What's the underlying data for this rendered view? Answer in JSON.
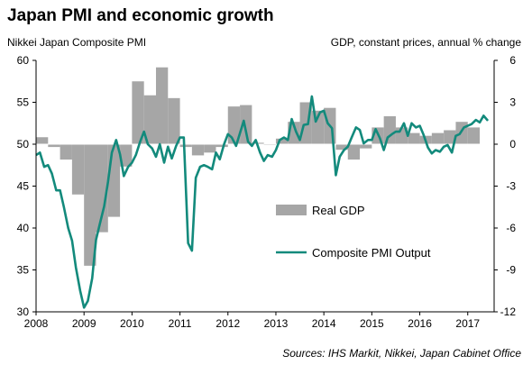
{
  "chart_data": {
    "type": "bar+line",
    "title": "Japan PMI and economic growth",
    "left_axis_label": "Nikkei Japan Composite PMI",
    "right_axis_label": "GDP, constant prices, annual % change",
    "source": "Sources: IHS Markit, Nikkei, Japan Cabinet Office",
    "x_ticks": [
      "2008",
      "2009",
      "2010",
      "2011",
      "2012",
      "2013",
      "2014",
      "2015",
      "2016",
      "2017"
    ],
    "x_range": [
      2008.0,
      2017.55
    ],
    "left_axis": {
      "min": 30,
      "max": 60,
      "ticks": [
        30,
        35,
        40,
        45,
        50,
        55,
        60
      ]
    },
    "right_axis": {
      "min": -12,
      "max": 6,
      "ticks": [
        -12,
        -9,
        -6,
        -3,
        0,
        3,
        6
      ]
    },
    "legend": {
      "position": "center-right",
      "entries": [
        "Real GDP",
        "Composite PMI Output"
      ]
    },
    "colors": {
      "gdp_bar": "#a6a6a6",
      "pmi_line": "#138a7c"
    },
    "series": [
      {
        "name": "Real GDP",
        "axis": "right",
        "type": "bar",
        "quarters": [
          {
            "start": 2008.0,
            "value": 0.5
          },
          {
            "start": 2008.25,
            "value": -0.2
          },
          {
            "start": 2008.5,
            "value": -1.1
          },
          {
            "start": 2008.75,
            "value": -3.6
          },
          {
            "start": 2009.0,
            "value": -8.7
          },
          {
            "start": 2009.25,
            "value": -6.3
          },
          {
            "start": 2009.5,
            "value": -5.2
          },
          {
            "start": 2009.75,
            "value": -1.6
          },
          {
            "start": 2010.0,
            "value": 4.5
          },
          {
            "start": 2010.25,
            "value": 3.5
          },
          {
            "start": 2010.5,
            "value": 5.5
          },
          {
            "start": 2010.75,
            "value": 3.3
          },
          {
            "start": 2011.0,
            "value": -0.2
          },
          {
            "start": 2011.25,
            "value": -0.8
          },
          {
            "start": 2011.5,
            "value": -0.6
          },
          {
            "start": 2011.75,
            "value": -0.2
          },
          {
            "start": 2012.0,
            "value": 2.7
          },
          {
            "start": 2012.25,
            "value": 2.8
          },
          {
            "start": 2012.5,
            "value": 0.1
          },
          {
            "start": 2012.75,
            "value": 0.0
          },
          {
            "start": 2013.0,
            "value": 0.4
          },
          {
            "start": 2013.25,
            "value": 1.6
          },
          {
            "start": 2013.5,
            "value": 3.0
          },
          {
            "start": 2013.75,
            "value": 2.4
          },
          {
            "start": 2014.0,
            "value": 2.6
          },
          {
            "start": 2014.25,
            "value": -0.4
          },
          {
            "start": 2014.5,
            "value": -1.1
          },
          {
            "start": 2014.75,
            "value": -0.3
          },
          {
            "start": 2015.0,
            "value": 1.2
          },
          {
            "start": 2015.25,
            "value": 2.0
          },
          {
            "start": 2015.5,
            "value": 1.2
          },
          {
            "start": 2015.75,
            "value": 0.8
          },
          {
            "start": 2016.0,
            "value": 0.6
          },
          {
            "start": 2016.25,
            "value": 0.8
          },
          {
            "start": 2016.5,
            "value": 1.0
          },
          {
            "start": 2016.75,
            "value": 1.6
          },
          {
            "start": 2017.0,
            "value": 1.2
          }
        ]
      },
      {
        "name": "Composite PMI Output",
        "axis": "left",
        "type": "line",
        "points": [
          [
            2008.0,
            48.7
          ],
          [
            2008.08,
            49.0
          ],
          [
            2008.17,
            47.3
          ],
          [
            2008.25,
            47.5
          ],
          [
            2008.33,
            46.5
          ],
          [
            2008.42,
            44.5
          ],
          [
            2008.5,
            44.5
          ],
          [
            2008.58,
            42.5
          ],
          [
            2008.67,
            40.0
          ],
          [
            2008.75,
            38.5
          ],
          [
            2008.83,
            35.3
          ],
          [
            2008.92,
            32.5
          ],
          [
            2009.0,
            30.5
          ],
          [
            2009.08,
            31.3
          ],
          [
            2009.17,
            34.0
          ],
          [
            2009.25,
            38.6
          ],
          [
            2009.33,
            40.5
          ],
          [
            2009.42,
            42.6
          ],
          [
            2009.5,
            45.5
          ],
          [
            2009.58,
            49.0
          ],
          [
            2009.67,
            50.5
          ],
          [
            2009.75,
            48.8
          ],
          [
            2009.83,
            46.2
          ],
          [
            2009.92,
            47.3
          ],
          [
            2010.0,
            47.8
          ],
          [
            2010.08,
            48.7
          ],
          [
            2010.17,
            50.3
          ],
          [
            2010.25,
            51.5
          ],
          [
            2010.33,
            50.0
          ],
          [
            2010.42,
            49.5
          ],
          [
            2010.5,
            48.5
          ],
          [
            2010.58,
            50.0
          ],
          [
            2010.67,
            47.8
          ],
          [
            2010.75,
            49.7
          ],
          [
            2010.83,
            48.3
          ],
          [
            2010.92,
            49.8
          ],
          [
            2011.0,
            50.8
          ],
          [
            2011.08,
            50.8
          ],
          [
            2011.17,
            38.2
          ],
          [
            2011.25,
            37.3
          ],
          [
            2011.33,
            46.0
          ],
          [
            2011.42,
            47.3
          ],
          [
            2011.5,
            47.5
          ],
          [
            2011.58,
            47.3
          ],
          [
            2011.67,
            47.0
          ],
          [
            2011.75,
            49.0
          ],
          [
            2011.83,
            48.2
          ],
          [
            2011.92,
            50.0
          ],
          [
            2012.0,
            51.2
          ],
          [
            2012.08,
            50.8
          ],
          [
            2012.17,
            49.8
          ],
          [
            2012.25,
            51.3
          ],
          [
            2012.33,
            52.8
          ],
          [
            2012.42,
            50.3
          ],
          [
            2012.5,
            49.8
          ],
          [
            2012.58,
            50.5
          ],
          [
            2012.67,
            49.0
          ],
          [
            2012.75,
            48.0
          ],
          [
            2012.83,
            48.7
          ],
          [
            2012.92,
            48.5
          ],
          [
            2013.0,
            49.3
          ],
          [
            2013.08,
            50.5
          ],
          [
            2013.17,
            50.8
          ],
          [
            2013.25,
            50.5
          ],
          [
            2013.33,
            53.0
          ],
          [
            2013.42,
            51.5
          ],
          [
            2013.5,
            50.5
          ],
          [
            2013.58,
            52.3
          ],
          [
            2013.67,
            52.4
          ],
          [
            2013.75,
            55.7
          ],
          [
            2013.83,
            52.7
          ],
          [
            2013.92,
            53.8
          ],
          [
            2014.0,
            54.0
          ],
          [
            2014.08,
            52.5
          ],
          [
            2014.17,
            51.9
          ],
          [
            2014.25,
            46.3
          ],
          [
            2014.33,
            48.5
          ],
          [
            2014.42,
            49.3
          ],
          [
            2014.5,
            49.7
          ],
          [
            2014.58,
            50.8
          ],
          [
            2014.67,
            52.0
          ],
          [
            2014.75,
            51.7
          ],
          [
            2014.83,
            50.1
          ],
          [
            2014.92,
            50.5
          ],
          [
            2015.0,
            50.5
          ],
          [
            2015.08,
            51.8
          ],
          [
            2015.17,
            50.7
          ],
          [
            2015.25,
            49.3
          ],
          [
            2015.33,
            50.8
          ],
          [
            2015.42,
            51.2
          ],
          [
            2015.5,
            51.5
          ],
          [
            2015.58,
            51.5
          ],
          [
            2015.67,
            52.5
          ],
          [
            2015.75,
            51.0
          ],
          [
            2015.83,
            52.5
          ],
          [
            2015.92,
            52.0
          ],
          [
            2016.0,
            52.2
          ],
          [
            2016.08,
            51.1
          ],
          [
            2016.17,
            49.6
          ],
          [
            2016.25,
            48.9
          ],
          [
            2016.33,
            49.3
          ],
          [
            2016.42,
            49.1
          ],
          [
            2016.5,
            49.7
          ],
          [
            2016.58,
            49.9
          ],
          [
            2016.67,
            49.0
          ],
          [
            2016.75,
            51.0
          ],
          [
            2016.83,
            51.2
          ],
          [
            2016.92,
            52.0
          ],
          [
            2017.0,
            52.2
          ],
          [
            2017.08,
            52.4
          ],
          [
            2017.17,
            52.9
          ],
          [
            2017.25,
            52.6
          ],
          [
            2017.33,
            53.4
          ],
          [
            2017.42,
            52.8
          ]
        ]
      }
    ]
  }
}
